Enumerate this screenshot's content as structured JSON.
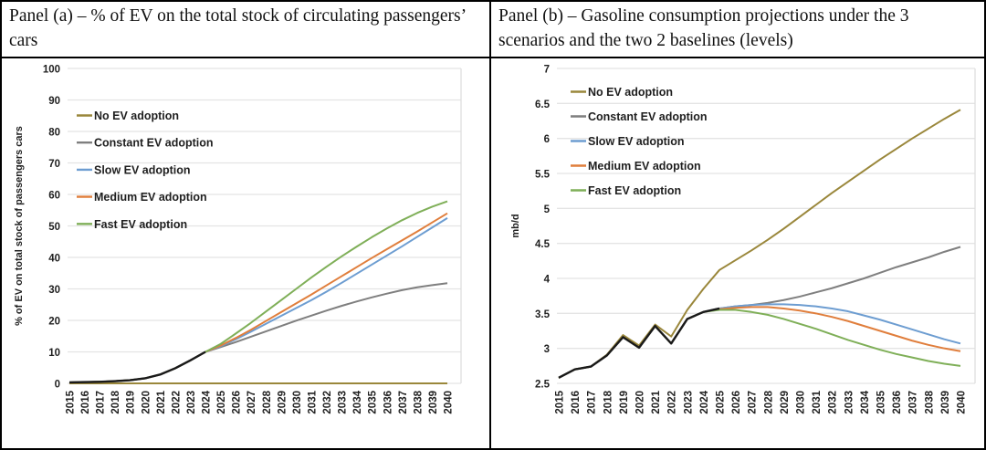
{
  "chart_data": [
    {
      "type": "line",
      "panel_label": "Panel (a)",
      "title": "Panel (a) – % of EV on the total stock of circulating passengers’ cars",
      "xlabel": "",
      "ylabel": "% of EV on total stock of passengers cars",
      "ylim": [
        0,
        100
      ],
      "ytick_step": 10,
      "grid": true,
      "legend_position": "upper-left-inside",
      "x": [
        2015,
        2016,
        2017,
        2018,
        2019,
        2020,
        2021,
        2022,
        2023,
        2024,
        2025,
        2026,
        2027,
        2028,
        2029,
        2030,
        2031,
        2032,
        2033,
        2034,
        2035,
        2036,
        2037,
        2038,
        2039,
        2040
      ],
      "series": [
        {
          "name": "No EV adoption",
          "color": "#9A873B",
          "values": [
            0,
            0,
            0,
            0,
            0,
            0,
            0,
            0,
            0,
            0,
            0,
            0,
            0,
            0,
            0,
            0,
            0,
            0,
            0,
            0,
            0,
            0,
            0,
            0,
            0,
            0
          ]
        },
        {
          "name": "Constant EV adoption",
          "color": "#7F7F7F",
          "values": [
            0.3,
            0.4,
            0.5,
            0.7,
            1.0,
            1.6,
            2.8,
            4.8,
            7.3,
            10.0,
            11.5,
            13.1,
            14.8,
            16.5,
            18.2,
            19.9,
            21.5,
            23.1,
            24.6,
            26.0,
            27.3,
            28.5,
            29.6,
            30.5,
            31.2,
            31.8
          ]
        },
        {
          "name": "Slow EV adoption",
          "color": "#6D9DD1",
          "values": [
            0.3,
            0.4,
            0.5,
            0.7,
            1.0,
            1.6,
            2.8,
            4.8,
            7.3,
            10.0,
            11.8,
            14.0,
            16.4,
            18.9,
            21.4,
            23.9,
            26.4,
            29.1,
            31.9,
            34.8,
            37.7,
            40.6,
            43.5,
            46.5,
            49.5,
            52.5
          ]
        },
        {
          "name": "Medium EV adoption",
          "color": "#E07E3C",
          "values": [
            0.3,
            0.4,
            0.5,
            0.7,
            1.0,
            1.6,
            2.8,
            4.8,
            7.3,
            10.0,
            12.0,
            14.4,
            17.0,
            19.8,
            22.6,
            25.4,
            28.2,
            31.1,
            34.0,
            36.9,
            39.8,
            42.6,
            45.4,
            48.2,
            51.1,
            54.0
          ]
        },
        {
          "name": "Fast EV adoption",
          "color": "#7FAF58",
          "values": [
            0.3,
            0.4,
            0.5,
            0.7,
            1.0,
            1.6,
            2.8,
            4.8,
            7.3,
            10.0,
            12.5,
            15.8,
            19.2,
            22.8,
            26.4,
            30.0,
            33.6,
            37.0,
            40.3,
            43.4,
            46.4,
            49.2,
            51.8,
            54.1,
            56.1,
            57.8
          ]
        }
      ],
      "trunk": {
        "name": "overlapping common path 2015-2024",
        "color": "#1a1a1a",
        "values": [
          0.3,
          0.4,
          0.5,
          0.7,
          1.0,
          1.6,
          2.8,
          4.8,
          7.3,
          10.0
        ]
      }
    },
    {
      "type": "line",
      "panel_label": "Panel (b)",
      "title": "Panel (b) – Gasoline consumption projections under the 3 scenarios and the two 2 baselines (levels)",
      "xlabel": "",
      "ylabel": "mb/d",
      "ylim": [
        2.5,
        7
      ],
      "ytick_step": 0.5,
      "grid": true,
      "legend_position": "upper-left-inside",
      "x": [
        2015,
        2016,
        2017,
        2018,
        2019,
        2020,
        2021,
        2022,
        2023,
        2024,
        2025,
        2026,
        2027,
        2028,
        2029,
        2030,
        2031,
        2032,
        2033,
        2034,
        2035,
        2036,
        2037,
        2038,
        2039,
        2040
      ],
      "series": [
        {
          "name": "No EV adoption",
          "color": "#9A873B",
          "values": [
            2.58,
            2.7,
            2.74,
            2.91,
            3.19,
            3.04,
            3.34,
            3.17,
            3.55,
            3.85,
            4.12,
            4.26,
            4.4,
            4.55,
            4.71,
            4.88,
            5.05,
            5.22,
            5.38,
            5.54,
            5.7,
            5.85,
            6.0,
            6.14,
            6.28,
            6.41
          ]
        },
        {
          "name": "Constant EV adoption",
          "color": "#7F7F7F",
          "values": [
            2.58,
            2.7,
            2.74,
            2.9,
            3.16,
            3.01,
            3.32,
            3.07,
            3.42,
            3.52,
            3.57,
            3.6,
            3.62,
            3.65,
            3.69,
            3.74,
            3.8,
            3.86,
            3.93,
            4.0,
            4.08,
            4.16,
            4.23,
            4.3,
            4.38,
            4.45
          ]
        },
        {
          "name": "Slow EV adoption",
          "color": "#6D9DD1",
          "values": [
            2.58,
            2.7,
            2.74,
            2.9,
            3.16,
            3.01,
            3.32,
            3.07,
            3.42,
            3.52,
            3.57,
            3.6,
            3.62,
            3.63,
            3.63,
            3.62,
            3.6,
            3.57,
            3.53,
            3.47,
            3.41,
            3.34,
            3.27,
            3.2,
            3.13,
            3.07
          ]
        },
        {
          "name": "Medium EV adoption",
          "color": "#E07E3C",
          "values": [
            2.58,
            2.7,
            2.74,
            2.9,
            3.16,
            3.01,
            3.32,
            3.07,
            3.42,
            3.52,
            3.56,
            3.58,
            3.59,
            3.59,
            3.57,
            3.54,
            3.5,
            3.45,
            3.39,
            3.32,
            3.25,
            3.18,
            3.11,
            3.05,
            3.0,
            2.96
          ]
        },
        {
          "name": "Fast EV adoption",
          "color": "#7FAF58",
          "values": [
            2.58,
            2.7,
            2.74,
            2.9,
            3.16,
            3.01,
            3.32,
            3.07,
            3.42,
            3.52,
            3.55,
            3.55,
            3.52,
            3.48,
            3.42,
            3.35,
            3.28,
            3.2,
            3.12,
            3.05,
            2.98,
            2.92,
            2.87,
            2.82,
            2.78,
            2.75
          ]
        }
      ],
      "trunk": {
        "name": "overlapping common path 2015-2025",
        "color": "#1a1a1a",
        "values": [
          2.58,
          2.7,
          2.74,
          2.9,
          3.16,
          3.01,
          3.32,
          3.07,
          3.42,
          3.52,
          3.57
        ]
      }
    }
  ]
}
